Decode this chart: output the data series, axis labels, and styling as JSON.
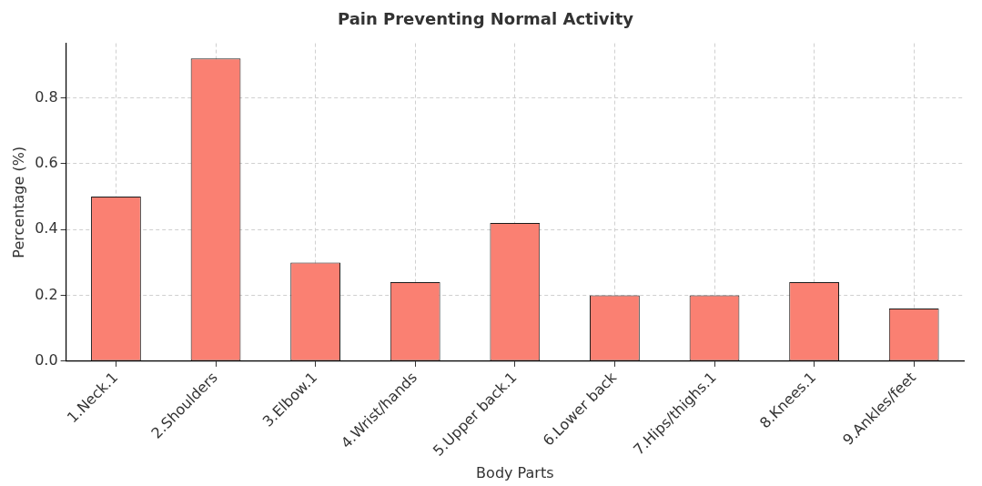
{
  "chart_data": {
    "type": "bar",
    "title": "Pain Preventing Normal Activity",
    "xlabel": "Body Parts",
    "ylabel": "Percentage (%)",
    "categories": [
      "1.Neck.1",
      "2.Shoulders",
      "3.Elbow.1",
      "4.Wrist/hands",
      "5.Upper back.1",
      "6.Lower back",
      "7.Hips/thighs.1",
      "8.Knees.1",
      "9.Ankles/feet"
    ],
    "values": [
      0.5,
      0.92,
      0.3,
      0.24,
      0.42,
      0.2,
      0.2,
      0.24,
      0.16
    ],
    "color": "#fa8072",
    "ylim": [
      0,
      0.966
    ],
    "yticks": [
      {
        "value": 0,
        "label": "0.0"
      },
      0.2,
      0.4,
      0.6,
      0.8
    ],
    "grid": true
  }
}
